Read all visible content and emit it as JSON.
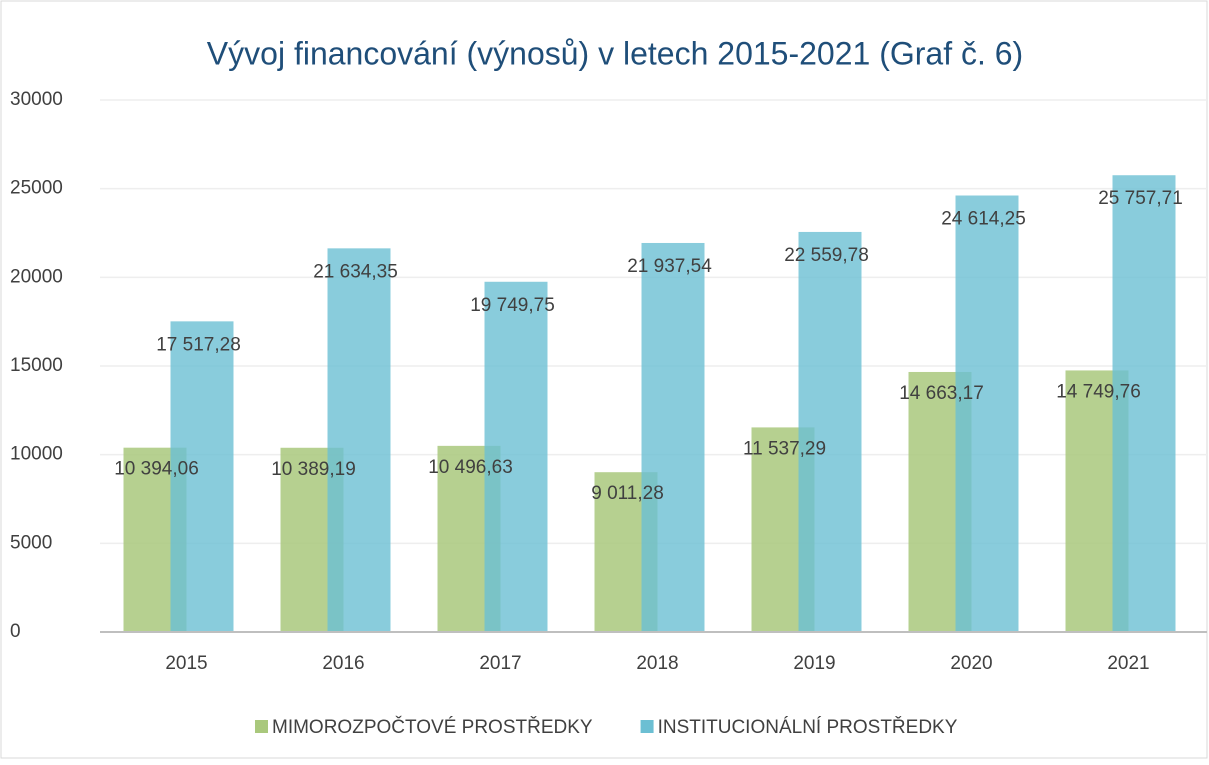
{
  "chart_data": {
    "type": "bar",
    "title": "Vývoj financování  (výnosů) v letech 2015-2021 (Graf č. 6)",
    "categories": [
      "2015",
      "2016",
      "2017",
      "2018",
      "2019",
      "2020",
      "2021"
    ],
    "series": [
      {
        "name": "MIMOROZPOČTOVÉ PROSTŘEDKY",
        "color": "#a9c87c",
        "values": [
          10394.06,
          10389.19,
          10496.63,
          9011.28,
          11537.29,
          14663.17,
          14749.76
        ],
        "value_labels": [
          "10 394,06",
          "10 389,19",
          "10 496,63",
          "9 011,28",
          "11 537,29",
          "14 663,17",
          "14 749,76"
        ]
      },
      {
        "name": "INSTITUCIONÁLNÍ  PROSTŘEDKY",
        "color": "#6cbfd3",
        "values": [
          17517.28,
          21634.35,
          19749.75,
          21937.54,
          22559.78,
          24614.25,
          25757.71
        ],
        "value_labels": [
          "17 517,28",
          "21 634,35",
          "19 749,75",
          "21 937,54",
          "22 559,78",
          "24 614,25",
          "25 757,71"
        ]
      }
    ],
    "ylim": [
      0,
      30000
    ],
    "yticks": [
      0,
      5000,
      10000,
      15000,
      20000,
      25000,
      30000
    ],
    "grid": true,
    "legend": "bottom"
  }
}
